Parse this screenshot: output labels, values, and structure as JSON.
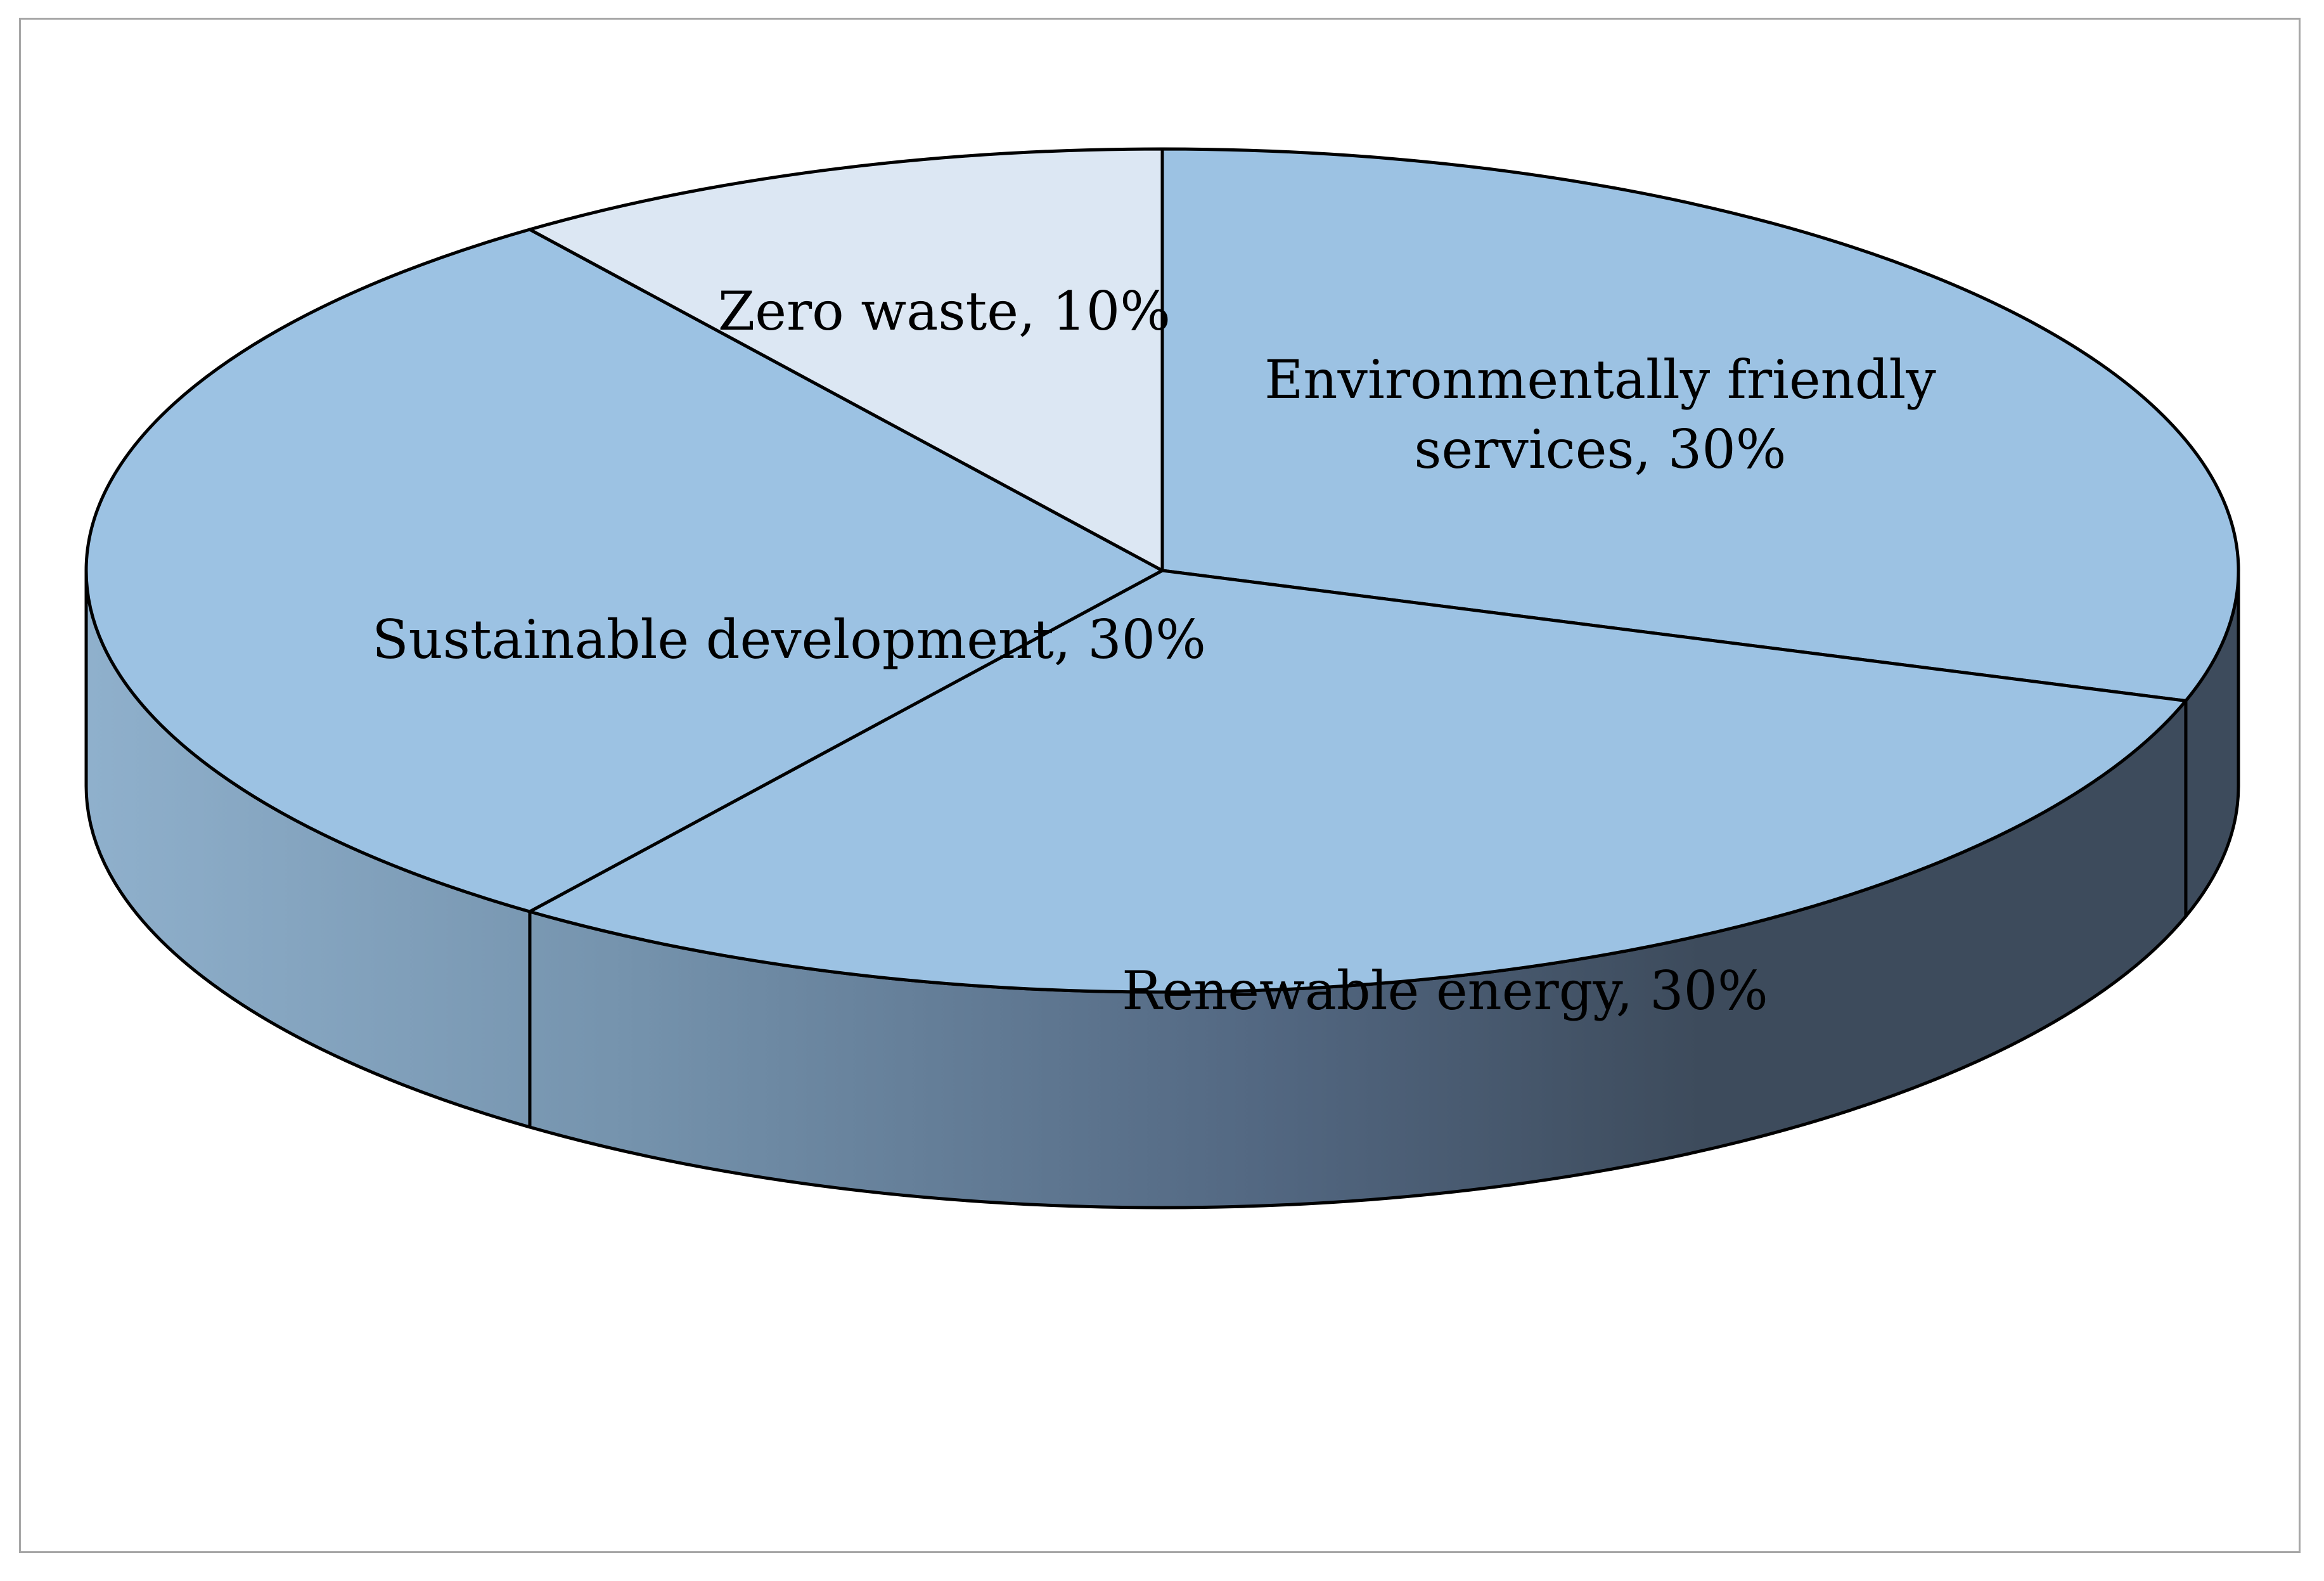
{
  "chart_data": {
    "type": "pie",
    "style": "3d",
    "title": "",
    "slices": [
      {
        "label": "Environmentally friendly services",
        "display_label": [
          "Environmentally friendly",
          "services, 30%"
        ],
        "value": 30,
        "percent_text": "30%",
        "color": "#9cc2e3"
      },
      {
        "label": "Renewable energy",
        "display_label": [
          "Renewable energy, 30%"
        ],
        "value": 30,
        "percent_text": "30%",
        "color": "#9cc2e3"
      },
      {
        "label": "Sustainable development",
        "display_label": [
          "Sustainable development, 30%"
        ],
        "value": 30,
        "percent_text": "30%",
        "color": "#9cc2e3"
      },
      {
        "label": "Zero waste",
        "display_label": [
          "Zero waste, 10%"
        ],
        "value": 10,
        "percent_text": "10%",
        "color": "#dce7f3"
      }
    ],
    "side_colors": {
      "light": "#8fb0cc",
      "dark": "#3d4b5c"
    },
    "outline_color": "#000000",
    "legend": "none"
  }
}
